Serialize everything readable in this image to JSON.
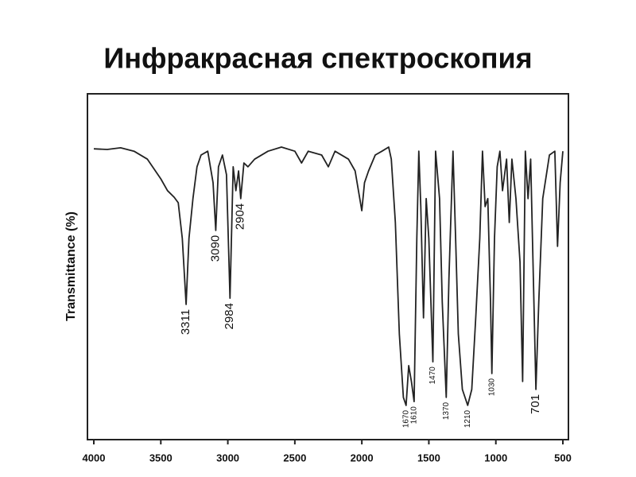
{
  "chart_data": {
    "type": "line",
    "title": "Инфракрасная спектроскопия",
    "ylabel": "Transmittance (%)",
    "xlim": [
      4000,
      500
    ],
    "xticks": [
      4000,
      3500,
      3000,
      2500,
      2000,
      1500,
      1000,
      500
    ],
    "ylim": [
      0,
      100
    ],
    "color": "#222222",
    "x": [
      4000,
      3900,
      3800,
      3700,
      3600,
      3500,
      3450,
      3400,
      3370,
      3340,
      3311,
      3290,
      3260,
      3230,
      3200,
      3150,
      3110,
      3090,
      3070,
      3040,
      3010,
      2984,
      2960,
      2940,
      2920,
      2904,
      2880,
      2850,
      2800,
      2700,
      2600,
      2500,
      2450,
      2400,
      2300,
      2250,
      2200,
      2100,
      2050,
      2000,
      1980,
      1950,
      1900,
      1850,
      1800,
      1780,
      1750,
      1720,
      1690,
      1670,
      1650,
      1630,
      1610,
      1590,
      1575,
      1560,
      1540,
      1520,
      1500,
      1470,
      1450,
      1420,
      1400,
      1370,
      1350,
      1320,
      1300,
      1280,
      1250,
      1210,
      1180,
      1150,
      1120,
      1100,
      1080,
      1060,
      1040,
      1030,
      1010,
      990,
      970,
      950,
      920,
      900,
      880,
      850,
      820,
      800,
      780,
      760,
      740,
      720,
      701,
      680,
      650,
      600,
      560,
      540,
      520,
      500
    ],
    "values": [
      84.1,
      83.9,
      84.4,
      83.4,
      81.1,
      75.4,
      72.0,
      70.1,
      68.5,
      58.2,
      39.1,
      58.2,
      69.7,
      78.9,
      82.3,
      83.4,
      74.3,
      60.5,
      78.9,
      82.3,
      76.6,
      40.9,
      78.9,
      72.0,
      77.7,
      69.7,
      80.0,
      78.9,
      81.1,
      83.4,
      84.6,
      83.4,
      80.0,
      83.4,
      82.3,
      78.9,
      83.4,
      81.1,
      77.7,
      66.2,
      74.3,
      77.7,
      82.3,
      83.4,
      84.6,
      81.1,
      62.8,
      30.6,
      12.2,
      9.9,
      21.4,
      16.8,
      11.0,
      58.2,
      83.4,
      67.4,
      35.2,
      69.7,
      58.2,
      22.5,
      83.4,
      69.7,
      39.8,
      12.2,
      46.7,
      83.4,
      58.2,
      30.6,
      14.5,
      9.9,
      14.5,
      35.2,
      58.2,
      83.4,
      67.4,
      69.7,
      39.8,
      19.1,
      58.2,
      78.9,
      83.4,
      72.0,
      81.1,
      62.8,
      81.1,
      69.7,
      51.3,
      16.8,
      83.4,
      69.7,
      81.1,
      46.7,
      14.5,
      39.8,
      69.7,
      82.3,
      83.4,
      55.9,
      74.3,
      83.4
    ],
    "annotations": [
      {
        "text": "3311",
        "x": 3311
      },
      {
        "text": "3090",
        "x": 3090
      },
      {
        "text": "2984",
        "x": 2984
      },
      {
        "text": "2904",
        "x": 2904
      },
      {
        "text": "1670",
        "x": 1670
      },
      {
        "text": "1610",
        "x": 1610
      },
      {
        "text": "1470",
        "x": 1470
      },
      {
        "text": "1370",
        "x": 1370
      },
      {
        "text": "1210",
        "x": 1210
      },
      {
        "text": "1030",
        "x": 1030
      },
      {
        "text": "701",
        "x": 701
      }
    ]
  }
}
